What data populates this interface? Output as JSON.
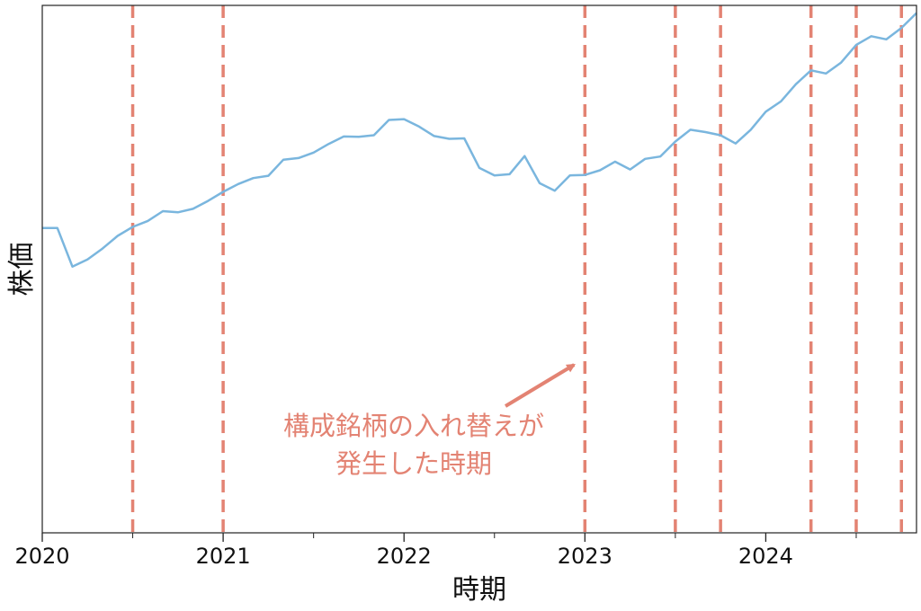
{
  "chart_data": {
    "type": "line",
    "xlabel": "時期",
    "ylabel": "株価",
    "xlim": [
      "2020-01",
      "2024-11"
    ],
    "x_ticks": [
      "2020",
      "2021",
      "2022",
      "2023",
      "2024"
    ],
    "minor_ticks": "half-year",
    "y_ticks_shown": false,
    "grid": false,
    "legend": "none",
    "series": [
      {
        "color": "#7ab6de",
        "x": [
          "2020-01",
          "2020-02",
          "2020-03",
          "2020-04",
          "2020-05",
          "2020-06",
          "2020-07",
          "2020-08",
          "2020-09",
          "2020-10",
          "2020-11",
          "2020-12",
          "2021-01",
          "2021-02",
          "2021-03",
          "2021-04",
          "2021-05",
          "2021-06",
          "2021-07",
          "2021-08",
          "2021-09",
          "2021-10",
          "2021-11",
          "2021-12",
          "2022-01",
          "2022-02",
          "2022-03",
          "2022-04",
          "2022-05",
          "2022-06",
          "2022-07",
          "2022-08",
          "2022-09",
          "2022-10",
          "2022-11",
          "2022-12",
          "2023-01",
          "2023-02",
          "2023-03",
          "2023-04",
          "2023-05",
          "2023-06",
          "2023-07",
          "2023-08",
          "2023-09",
          "2023-10",
          "2023-11",
          "2023-12",
          "2024-01",
          "2024-02",
          "2024-03",
          "2024-04",
          "2024-05",
          "2024-06",
          "2024-07",
          "2024-08",
          "2024-09",
          "2024-10",
          "2024-11"
        ],
        "values": [
          51.2,
          51.2,
          41.4,
          43.2,
          46.0,
          49.2,
          51.5,
          53.0,
          55.5,
          55.2,
          56.1,
          58.1,
          60.4,
          62.4,
          63.9,
          64.5,
          68.6,
          69.0,
          70.4,
          72.6,
          74.5,
          74.4,
          74.8,
          78.7,
          78.9,
          77.0,
          74.6,
          73.9,
          74.0,
          66.5,
          64.6,
          64.9,
          69.5,
          62.6,
          60.7,
          64.6,
          64.7,
          65.9,
          68.1,
          66.1,
          68.8,
          69.4,
          73.2,
          76.2,
          75.6,
          74.8,
          72.7,
          76.2,
          80.8,
          83.4,
          87.8,
          91.3,
          90.5,
          93.3,
          97.8,
          100.0,
          99.2,
          102.1,
          105.9
        ]
      }
    ],
    "event_lines": {
      "color": "#e38373",
      "style": "dashed",
      "x": [
        "2020-07",
        "2021-01",
        "2023-01",
        "2023-07",
        "2023-10",
        "2024-04",
        "2024-07",
        "2024-10"
      ]
    },
    "annotation": {
      "line1": "構成銘柄の入れ替えが",
      "line2": "発生した時期",
      "color": "#e38373",
      "arrow_target_x": "2023-01"
    }
  }
}
